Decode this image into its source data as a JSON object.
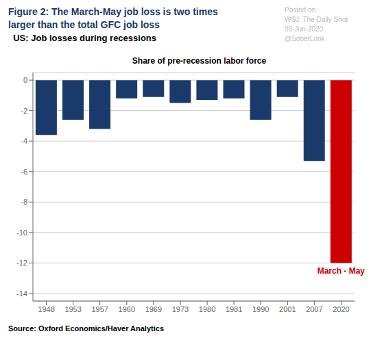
{
  "chart_data": {
    "type": "bar",
    "title_lines": [
      "Figure 2: The March-May job loss is two times",
      "larger than the total GFC job loss"
    ],
    "title_color": "#1a3a6b",
    "subtitle": "  US: Job losses during recessions",
    "subtitle_color": "#000000",
    "chart_title": "Share of pre-recession labor force",
    "categories": [
      "1948",
      "1953",
      "1957",
      "1960",
      "1969",
      "1973",
      "1980",
      "1981",
      "1990",
      "2001",
      "2007",
      "2020"
    ],
    "values": [
      -3.6,
      -2.6,
      -3.2,
      -1.2,
      -1.1,
      -1.5,
      -1.3,
      -1.2,
      -2.6,
      -1.1,
      -5.3,
      -12.0
    ],
    "colors": [
      "#1a3a6b",
      "#1a3a6b",
      "#1a3a6b",
      "#1a3a6b",
      "#1a3a6b",
      "#1a3a6b",
      "#1a3a6b",
      "#1a3a6b",
      "#1a3a6b",
      "#1a3a6b",
      "#1a3a6b",
      "#cc0000"
    ],
    "ylim": [
      -14.5,
      0.5
    ],
    "yticks": [
      0,
      -2,
      -4,
      -6,
      -8,
      -10,
      -12,
      -14
    ],
    "grid": true,
    "annotations": [
      {
        "text": "March - May",
        "color": "#cc0000",
        "category": "2020"
      }
    ],
    "source": "Source: Oxford Economics/Haver Analytics",
    "watermark": [
      "Posted on",
      "WSJ: The Daily Shot",
      "09-Jun-2020",
      "@SoberLook"
    ]
  }
}
